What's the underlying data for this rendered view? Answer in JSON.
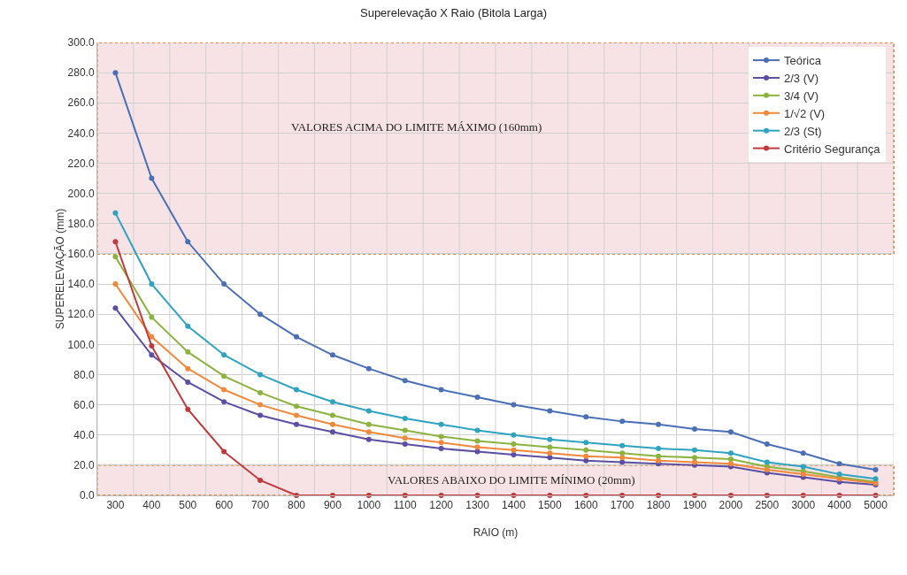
{
  "chart_data": {
    "type": "line",
    "title": "Superelevação X Raio (Bitola Larga)",
    "xlabel": "RAIO (m)",
    "ylabel": "SUPERELEVAÇÃO (mm)",
    "categories": [
      "300",
      "400",
      "500",
      "600",
      "700",
      "800",
      "900",
      "1000",
      "1100",
      "1200",
      "1300",
      "1400",
      "1500",
      "1600",
      "1700",
      "1800",
      "1900",
      "2000",
      "2500",
      "3000",
      "4000",
      "5000"
    ],
    "series": [
      {
        "name": "Teórica",
        "color": "#4a6fb5",
        "values": [
          280,
          210,
          168,
          140,
          120,
          105,
          93,
          84,
          76,
          70,
          65,
          60,
          56,
          52,
          49,
          47,
          44,
          42,
          34,
          28,
          21,
          17
        ]
      },
      {
        "name": "2/3 (V)",
        "color": "#5b4ea3",
        "values": [
          124,
          93,
          75,
          62,
          53,
          47,
          42,
          37,
          34,
          31,
          29,
          27,
          25,
          23,
          22,
          21,
          20,
          19,
          15,
          12,
          9,
          7
        ]
      },
      {
        "name": "3/4 (V)",
        "color": "#8db33f",
        "values": [
          158,
          118,
          95,
          79,
          68,
          59,
          53,
          47,
          43,
          39,
          36,
          34,
          32,
          30,
          28,
          26,
          25,
          24,
          19,
          16,
          12,
          9
        ]
      },
      {
        "name": "1/√2 (V)",
        "color": "#f0893b",
        "values": [
          140,
          105,
          84,
          70,
          60,
          53,
          47,
          42,
          38,
          35,
          32,
          30,
          28,
          26,
          25,
          23,
          22,
          21,
          17,
          14,
          11,
          8
        ]
      },
      {
        "name": "2/3 (St)",
        "color": "#2fa3bf",
        "values": [
          187,
          140,
          112,
          93,
          80,
          70,
          62,
          56,
          51,
          47,
          43,
          40,
          37,
          35,
          33,
          31,
          30,
          28,
          22,
          19,
          14,
          11
        ]
      },
      {
        "name": "Critério Segurança",
        "color": "#c0393b",
        "values": [
          168,
          99,
          57,
          29,
          10,
          0,
          0,
          0,
          0,
          0,
          0,
          0,
          0,
          0,
          0,
          0,
          0,
          0,
          0,
          0,
          0,
          0
        ]
      }
    ],
    "ylim": [
      0,
      300
    ],
    "yticks": [
      {
        "value": 0,
        "label": "0.0"
      },
      {
        "value": 20,
        "label": "20.0"
      },
      {
        "value": 40,
        "label": "40.0"
      },
      {
        "value": 60,
        "label": "60.0"
      },
      {
        "value": 80,
        "label": "80.0"
      },
      {
        "value": 100,
        "label": "100.0"
      },
      {
        "value": 120,
        "label": "120.0"
      },
      {
        "value": 140,
        "label": "140.0"
      },
      {
        "value": 160,
        "label": "160.0"
      },
      {
        "value": 180,
        "label": "180.0"
      },
      {
        "value": 200,
        "label": "200.0"
      },
      {
        "value": 220,
        "label": "220.0"
      },
      {
        "value": 240,
        "label": "240.0"
      },
      {
        "value": 260,
        "label": "260.0"
      },
      {
        "value": 280,
        "label": "280.0"
      },
      {
        "value": 300,
        "label": "300.0"
      }
    ],
    "bands": [
      {
        "axis": "y",
        "from": 160,
        "to": 300,
        "label": "VALORES ACIMA DO LIMITE MÁXIMO (160mm)",
        "color": "#f7e3e6"
      },
      {
        "axis": "y",
        "from": 0,
        "to": 20,
        "label": "VALORES ABAIXO DO LIMITE MÍNIMO (20mm)",
        "color": "#f7e3e6"
      }
    ],
    "grid": true,
    "legend": "top right",
    "marker": "circle",
    "line_style": "solid"
  }
}
